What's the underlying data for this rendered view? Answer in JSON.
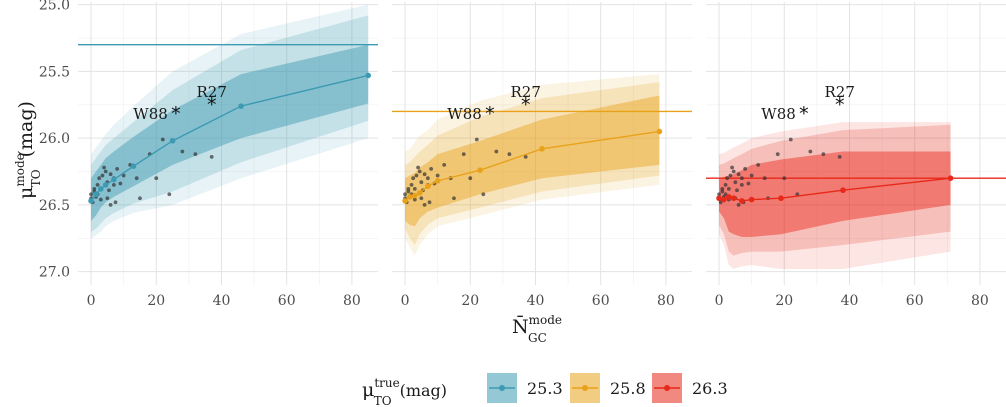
{
  "chart_data": {
    "type": "line",
    "xlabel": "N̄",
    "xlabel_sub": "GC",
    "xlabel_sup": "mode",
    "ylabel": "μ",
    "ylabel_sub": "TO",
    "ylabel_sup": "mode",
    "ylabel_unit": "(mag)",
    "xlim": [
      -4,
      88
    ],
    "ylim": [
      27.1,
      24.98
    ],
    "x_ticks": [
      0,
      20,
      40,
      60,
      80
    ],
    "y_ticks": [
      25.0,
      25.5,
      26.0,
      26.5,
      27.0
    ],
    "x_tick_labels": [
      "0",
      "20",
      "40",
      "60",
      "80"
    ],
    "y_tick_labels": [
      "25.0",
      "25.5",
      "26.0",
      "26.5",
      "27.0"
    ],
    "grid": true,
    "legend": {
      "position": "bottom",
      "title": "μ",
      "title_sub": "TO",
      "title_sup": "true",
      "title_unit": "(mag)",
      "entries": [
        "25.3",
        "25.8",
        "26.3"
      ]
    },
    "annotations": [
      {
        "label": "W88",
        "x": 26,
        "y": 25.82
      },
      {
        "label": "R27",
        "x": 37,
        "y": 25.75
      }
    ],
    "galaxy_points": [
      [
        0,
        26.45
      ],
      [
        0,
        26.42
      ],
      [
        0.5,
        26.48
      ],
      [
        1,
        26.4
      ],
      [
        1,
        26.38
      ],
      [
        1.5,
        26.44
      ],
      [
        2,
        26.35
      ],
      [
        2,
        26.42
      ],
      [
        2.5,
        26.3
      ],
      [
        3,
        26.46
      ],
      [
        3,
        26.38
      ],
      [
        3.5,
        26.28
      ],
      [
        4,
        26.22
      ],
      [
        4.5,
        26.25
      ],
      [
        5,
        26.33
      ],
      [
        5,
        26.45
      ],
      [
        5.5,
        26.39
      ],
      [
        6,
        26.5
      ],
      [
        6,
        26.27
      ],
      [
        7,
        26.3
      ],
      [
        7,
        26.35
      ],
      [
        7.5,
        26.48
      ],
      [
        8,
        26.23
      ],
      [
        9,
        26.34
      ],
      [
        10,
        26.28
      ],
      [
        12,
        26.2
      ],
      [
        14,
        26.3
      ],
      [
        15,
        26.45
      ],
      [
        18,
        26.12
      ],
      [
        20,
        26.3
      ],
      [
        22,
        26.01
      ],
      [
        24,
        26.42
      ],
      [
        28,
        26.1
      ],
      [
        32,
        26.12
      ],
      [
        37,
        26.14
      ]
    ],
    "series": [
      {
        "name": "25.3",
        "color": "#3c9ab2",
        "x": [
          0,
          1.5,
          3,
          4.5,
          7,
          13,
          25,
          46,
          85
        ],
        "y": [
          26.47,
          26.42,
          26.38,
          26.35,
          26.31,
          26.21,
          26.02,
          25.76,
          25.53
        ],
        "inner_lo": [
          26.62,
          26.58,
          26.52,
          26.48,
          26.44,
          26.36,
          26.2,
          26.0,
          25.74
        ],
        "inner_hi": [
          26.3,
          26.25,
          26.2,
          26.15,
          26.1,
          25.99,
          25.79,
          25.52,
          25.3
        ],
        "outer_lo": [
          26.7,
          26.68,
          26.64,
          26.6,
          26.56,
          26.49,
          26.4,
          26.18,
          25.87
        ],
        "outer_hi": [
          26.2,
          26.15,
          26.1,
          26.05,
          26.0,
          25.88,
          25.64,
          25.34,
          25.08
        ],
        "outermost_lo": [
          26.75,
          26.73,
          26.7,
          26.66,
          26.62,
          26.56,
          26.5,
          26.3,
          26.0
        ],
        "outermost_hi": [
          26.12,
          26.07,
          26.02,
          25.97,
          25.9,
          25.76,
          25.5,
          25.22,
          25.0
        ]
      },
      {
        "name": "25.8",
        "color": "#e8a21a",
        "x": [
          0,
          1.5,
          3,
          4.5,
          7,
          10,
          23,
          42,
          78
        ],
        "y": [
          26.47,
          26.44,
          26.43,
          26.41,
          26.36,
          26.32,
          26.24,
          26.08,
          25.95
        ],
        "inner_lo": [
          26.62,
          26.65,
          26.66,
          26.6,
          26.55,
          26.52,
          26.42,
          26.3,
          26.2
        ],
        "inner_hi": [
          26.3,
          26.28,
          26.26,
          26.22,
          26.18,
          26.12,
          26.02,
          25.86,
          25.68
        ],
        "outer_lo": [
          26.68,
          26.75,
          26.8,
          26.72,
          26.65,
          26.6,
          26.52,
          26.4,
          26.28
        ],
        "outer_hi": [
          26.2,
          26.18,
          26.14,
          26.1,
          26.05,
          25.98,
          25.84,
          25.7,
          25.58
        ],
        "outermost_lo": [
          26.75,
          26.82,
          26.88,
          26.8,
          26.72,
          26.66,
          26.58,
          26.46,
          26.35
        ],
        "outermost_hi": [
          26.1,
          26.08,
          26.03,
          25.98,
          25.94,
          25.86,
          25.72,
          25.6,
          25.52
        ]
      },
      {
        "name": "26.3",
        "color": "#e8281a",
        "x": [
          0,
          1.5,
          3,
          4.5,
          7,
          10,
          19,
          38,
          71
        ],
        "y": [
          26.45,
          26.46,
          26.44,
          26.45,
          26.47,
          26.46,
          26.45,
          26.39,
          26.3
        ],
        "inner_lo": [
          26.55,
          26.6,
          26.7,
          26.72,
          26.74,
          26.74,
          26.72,
          26.62,
          26.5
        ],
        "inner_hi": [
          26.3,
          26.29,
          26.28,
          26.27,
          26.24,
          26.2,
          26.16,
          26.1,
          26.1
        ],
        "outer_lo": [
          26.65,
          26.72,
          26.85,
          26.88,
          26.86,
          26.85,
          26.85,
          26.8,
          26.7
        ],
        "outer_hi": [
          26.2,
          26.19,
          26.17,
          26.15,
          26.12,
          26.08,
          26.02,
          25.94,
          25.9
        ],
        "outermost_lo": [
          26.72,
          26.8,
          26.95,
          26.98,
          26.96,
          26.95,
          26.98,
          26.98,
          26.85
        ],
        "outermost_hi": [
          26.12,
          26.11,
          26.09,
          26.07,
          26.04,
          26.0,
          25.95,
          25.88,
          25.88
        ]
      }
    ]
  }
}
